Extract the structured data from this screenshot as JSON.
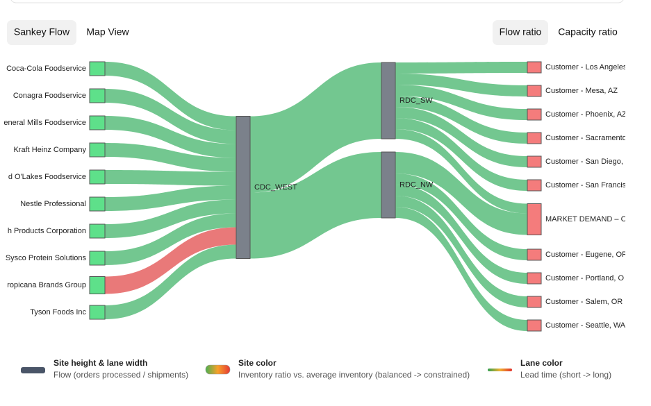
{
  "tabs": [
    "Sankey Flow",
    "Map View"
  ],
  "toggles": [
    "Flow ratio",
    "Capacity ratio"
  ],
  "chart_data": {
    "type": "sankey",
    "nodes": [
      {
        "label": "Coca-Cola Foodservice",
        "color": "#5ee08a"
      },
      {
        "label": "Conagra Foodservice",
        "color": "#5ee08a"
      },
      {
        "label": "eneral Mills Foodservice",
        "color": "#5ee08a"
      },
      {
        "label": "Kraft Heinz Company",
        "color": "#5ee08a"
      },
      {
        "label": "d O'Lakes Foodservice",
        "color": "#5ee08a"
      },
      {
        "label": "Nestle Professional",
        "color": "#5ee08a"
      },
      {
        "label": "h Products Corporation",
        "color": "#5ee08a"
      },
      {
        "label": "Sysco Protein Solutions",
        "color": "#5ee08a"
      },
      {
        "label": "ropicana Brands Group",
        "color": "#5ee08a"
      },
      {
        "label": "Tyson Foods Inc",
        "color": "#5ee08a"
      },
      {
        "label": "CDC_WEST",
        "color": "#7b818b"
      },
      {
        "label": "RDC_SW",
        "color": "#7b818b"
      },
      {
        "label": "RDC_NW",
        "color": "#7b818b"
      },
      {
        "label": "Customer - Los Angeles",
        "color": "#f47c7c"
      },
      {
        "label": "Customer - Mesa, AZ",
        "color": "#f47c7c"
      },
      {
        "label": "Customer - Phoenix, AZ",
        "color": "#f47c7c"
      },
      {
        "label": "Customer - Sacramento",
        "color": "#f47c7c"
      },
      {
        "label": "Customer - San Diego,",
        "color": "#f47c7c"
      },
      {
        "label": "Customer - San Francis",
        "color": "#f47c7c"
      },
      {
        "label": "MARKET DEMAND – C",
        "color": "#f47c7c"
      },
      {
        "label": "Customer - Eugene, OR",
        "color": "#f47c7c"
      },
      {
        "label": "Customer - Portland, O",
        "color": "#f47c7c"
      },
      {
        "label": "Customer - Salem, OR",
        "color": "#f47c7c"
      },
      {
        "label": "Customer - Seattle, WA",
        "color": "#f47c7c"
      }
    ],
    "links": [
      {
        "source": 0,
        "target": 10,
        "value": 20,
        "color": "#6cc48a"
      },
      {
        "source": 1,
        "target": 10,
        "value": 20,
        "color": "#6cc48a"
      },
      {
        "source": 2,
        "target": 10,
        "value": 20,
        "color": "#6cc48a"
      },
      {
        "source": 3,
        "target": 10,
        "value": 20,
        "color": "#6cc48a"
      },
      {
        "source": 4,
        "target": 10,
        "value": 20,
        "color": "#6cc48a"
      },
      {
        "source": 5,
        "target": 10,
        "value": 20,
        "color": "#6cc48a"
      },
      {
        "source": 6,
        "target": 10,
        "value": 20,
        "color": "#6cc48a"
      },
      {
        "source": 7,
        "target": 10,
        "value": 20,
        "color": "#6cc48a"
      },
      {
        "source": 8,
        "target": 10,
        "value": 25,
        "color": "#e87272"
      },
      {
        "source": 9,
        "target": 10,
        "value": 20,
        "color": "#6cc48a"
      },
      {
        "source": 10,
        "target": 11,
        "value": 110,
        "color": "#6cc48a"
      },
      {
        "source": 10,
        "target": 12,
        "value": 95,
        "color": "#6cc48a"
      },
      {
        "source": 11,
        "target": 13,
        "value": 16,
        "color": "#6cc48a"
      },
      {
        "source": 11,
        "target": 14,
        "value": 16,
        "color": "#6cc48a"
      },
      {
        "source": 11,
        "target": 15,
        "value": 16,
        "color": "#6cc48a"
      },
      {
        "source": 11,
        "target": 16,
        "value": 16,
        "color": "#6cc48a"
      },
      {
        "source": 11,
        "target": 17,
        "value": 16,
        "color": "#6cc48a"
      },
      {
        "source": 11,
        "target": 18,
        "value": 16,
        "color": "#6cc48a"
      },
      {
        "source": 11,
        "target": 19,
        "value": 14,
        "color": "#6cc48a"
      },
      {
        "source": 12,
        "target": 19,
        "value": 31,
        "color": "#6cc48a"
      },
      {
        "source": 12,
        "target": 20,
        "value": 16,
        "color": "#6cc48a"
      },
      {
        "source": 12,
        "target": 21,
        "value": 16,
        "color": "#6cc48a"
      },
      {
        "source": 12,
        "target": 22,
        "value": 16,
        "color": "#6cc48a"
      },
      {
        "source": 12,
        "target": 23,
        "value": 16,
        "color": "#6cc48a"
      }
    ]
  },
  "legend": [
    {
      "title": "Site height & lane width",
      "description": "Flow (orders processed / shipments)"
    },
    {
      "title": "Site color",
      "description": "Inventory ratio vs. average inventory (balanced -> constrained)"
    },
    {
      "title": "Lane color",
      "description": "Lead time (short -> long)"
    }
  ]
}
